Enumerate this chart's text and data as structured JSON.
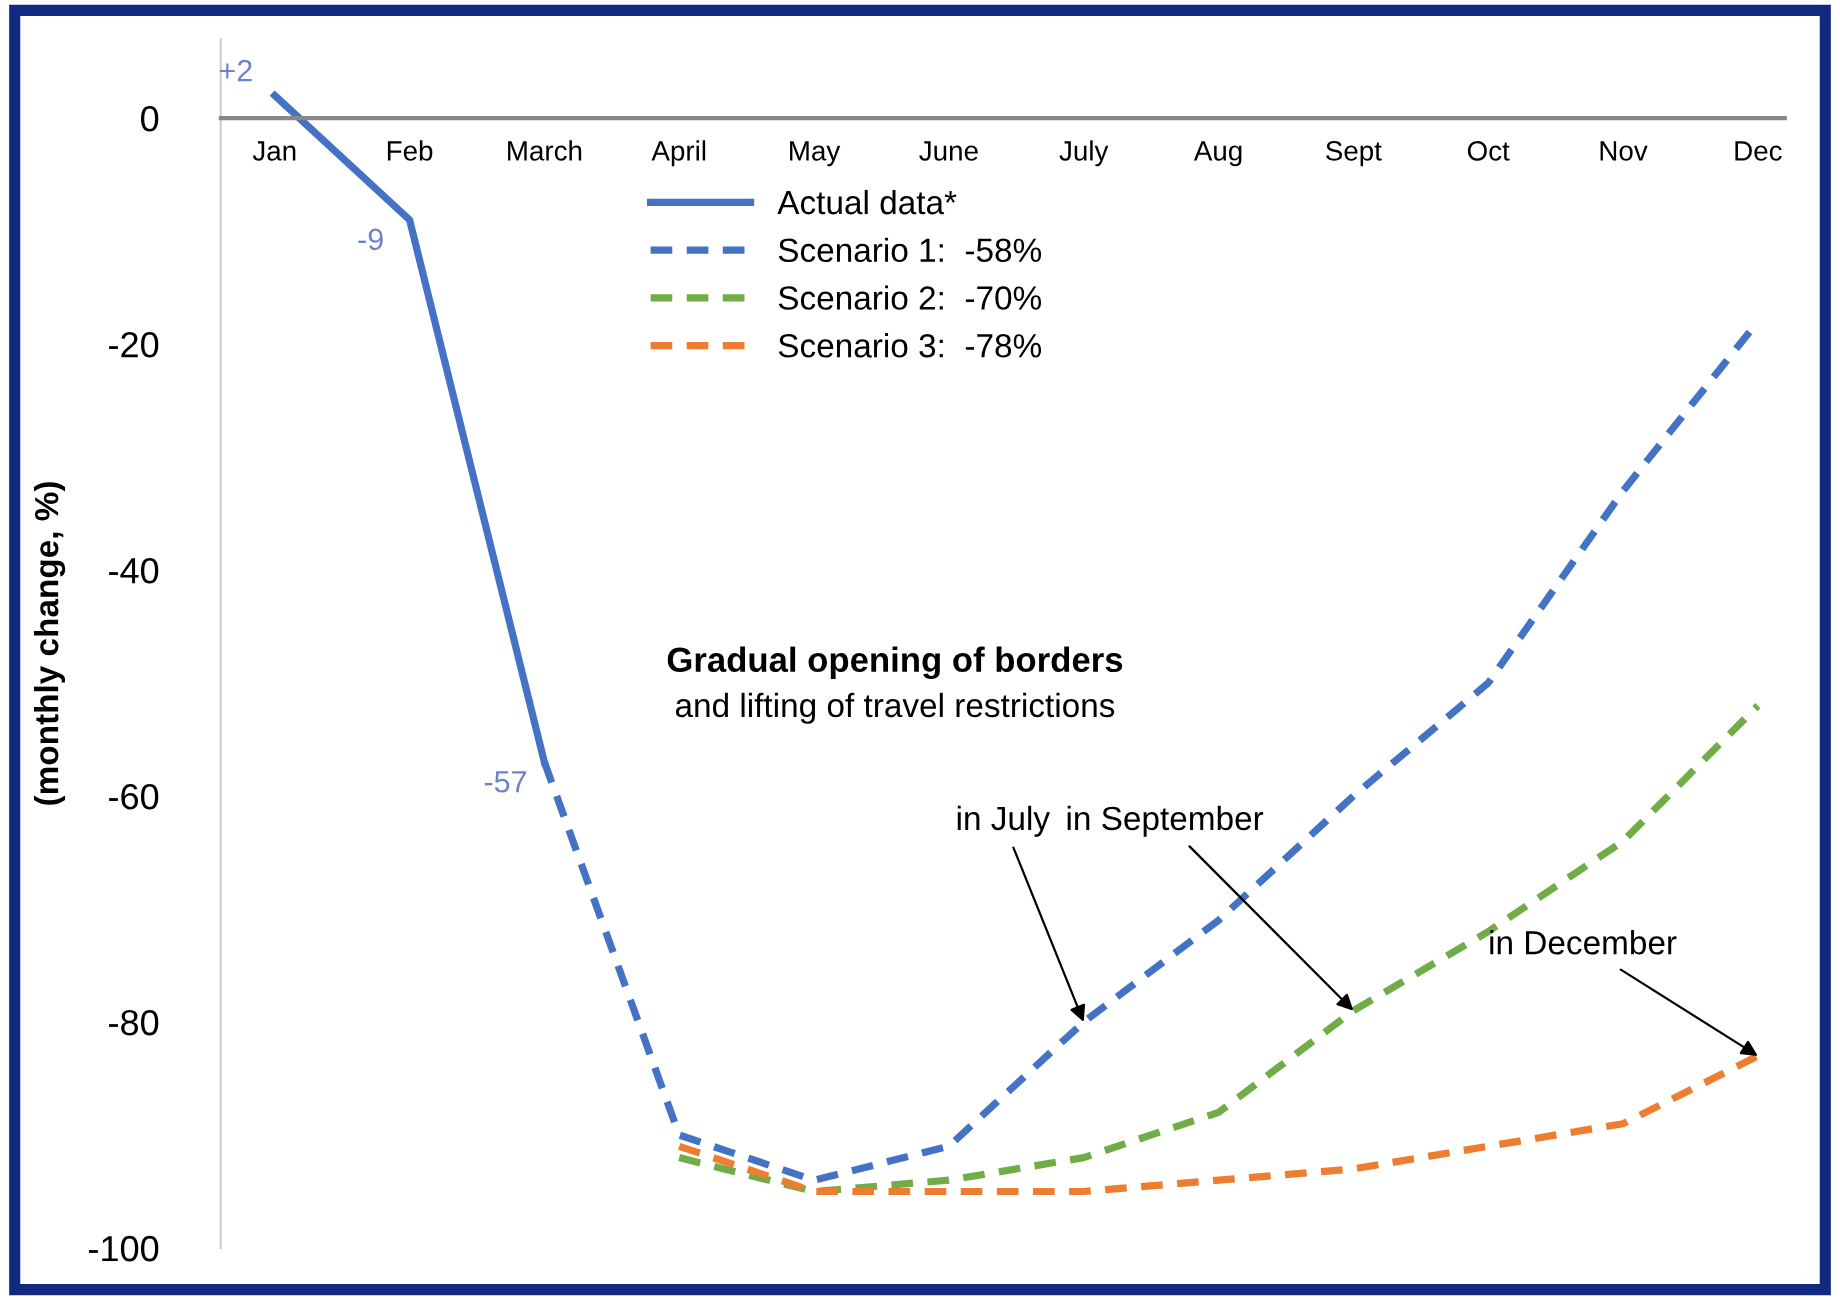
{
  "chart_data": {
    "type": "line",
    "ylabel": "(monthly change, %)",
    "categories": [
      "Jan",
      "Feb",
      "March",
      "April",
      "May",
      "June",
      "July",
      "Aug",
      "Sept",
      "Oct",
      "Nov",
      "Dec"
    ],
    "series": [
      {
        "name": "Actual data*",
        "color": "#4472c4",
        "line_style": "solid",
        "values": [
          2,
          -9,
          -57,
          null,
          null,
          null,
          null,
          null,
          null,
          null,
          null,
          null
        ],
        "value_labels": [
          "+2",
          "-9",
          "-57",
          null,
          null,
          null,
          null,
          null,
          null,
          null,
          null,
          null
        ]
      },
      {
        "name": "Scenario 1:  -58%",
        "color": "#4472c4",
        "line_style": "dashed",
        "values": [
          null,
          null,
          -57,
          -90,
          -94,
          -91,
          -80,
          -71,
          -60,
          -50,
          -33,
          -18
        ]
      },
      {
        "name": "Scenario 2:  -70%",
        "color": "#70ad47",
        "line_style": "dashed",
        "values": [
          null,
          null,
          null,
          -92,
          -95,
          -94,
          -92,
          -88,
          -79,
          -72,
          -64,
          -52
        ]
      },
      {
        "name": "Scenario 3:  -78%",
        "color": "#ed7d31",
        "line_style": "dashed",
        "values": [
          null,
          null,
          null,
          -91,
          -95,
          -95,
          -95,
          -94,
          -93,
          -91,
          -89,
          -83
        ]
      }
    ],
    "ylim": [
      -100,
      7
    ],
    "yticks": [
      0,
      -20,
      -40,
      -60,
      -80,
      -100
    ],
    "grid": false,
    "legend": "top",
    "marker": "none",
    "annotations": [
      "Gradual opening of borders",
      "and lifting of travel restrictions",
      {
        "text": "in July",
        "x": "July",
        "y": -80
      },
      {
        "text": "in September",
        "x": "Sept",
        "y": -79
      },
      {
        "text": "in December",
        "x": "Dec",
        "y": -83
      }
    ]
  }
}
